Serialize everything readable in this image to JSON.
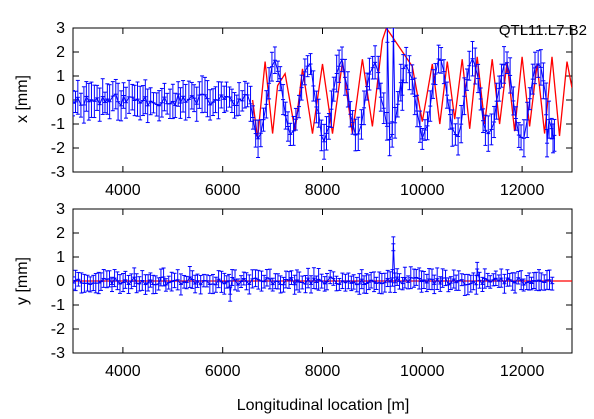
{
  "chart_data": [
    {
      "type": "line",
      "title": "QTL11.L7.B2",
      "xlabel": "",
      "ylabel": "x [mm]",
      "xlim": [
        3000,
        13000
      ],
      "ylim": [
        -3,
        3
      ],
      "xticks": [
        4000,
        6000,
        8000,
        10000,
        12000
      ],
      "xtick_labels": [
        "4000",
        "6000",
        "8000",
        "10000",
        "12000"
      ],
      "yticks": [
        -3,
        -2,
        -1,
        0,
        1,
        2,
        3
      ],
      "ytick_labels": [
        "-3",
        "-2",
        "-1",
        "0",
        "1",
        "2",
        "3"
      ],
      "grid": false,
      "series": [
        {
          "color": "#ff0000",
          "style": "line",
          "x": [
            6600,
            6700,
            6850,
            7000,
            7100,
            7250,
            7450,
            7600,
            7800,
            8000,
            8200,
            8400,
            8600,
            8800,
            9000,
            9200,
            9280,
            9800,
            10000,
            10200,
            10350,
            10500,
            10650,
            10800,
            10950,
            11100,
            11250,
            11400,
            11550,
            11700,
            11850,
            12000,
            12150,
            12300,
            12450,
            12600,
            12750,
            12900,
            13000
          ],
          "y": [
            0.0,
            -1.6,
            1.6,
            -1.4,
            0.6,
            1.1,
            -1.3,
            1.3,
            -1.4,
            1.5,
            -1.4,
            1.6,
            -1.4,
            1.7,
            -1.1,
            2.5,
            3.0,
            1.4,
            -0.9,
            1.5,
            -1.0,
            1.6,
            -0.8,
            1.7,
            -1.2,
            1.8,
            -1.0,
            1.7,
            -1.0,
            1.6,
            -1.3,
            1.8,
            -1.1,
            1.5,
            -1.4,
            1.8,
            -1.5,
            1.6,
            0.5
          ]
        },
        {
          "color": "#0000ff",
          "style": "errorbar",
          "seed": 11,
          "x_start": 3000,
          "x_end": 12650,
          "flat_region_end": 6550,
          "oscillation_amplitude": 1.55,
          "oscillation_period": 660,
          "noise_sigma": 0.2,
          "error_bar": 0.6,
          "markers": [
            {
              "x": 9300,
              "y": 3.0
            },
            {
              "x": 9420,
              "y": 3.0
            },
            {
              "x": 9600,
              "y": 0.2
            },
            {
              "x": 12500,
              "y": -1.8
            },
            {
              "x": 12620,
              "y": -1.6
            }
          ]
        }
      ]
    },
    {
      "type": "line",
      "title": "",
      "xlabel": "Longitudinal location [m]",
      "ylabel": "y [mm]",
      "xlim": [
        3000,
        13000
      ],
      "ylim": [
        -3,
        3
      ],
      "xticks": [
        4000,
        6000,
        8000,
        10000,
        12000
      ],
      "xtick_labels": [
        "4000",
        "6000",
        "8000",
        "10000",
        "12000"
      ],
      "yticks": [
        -3,
        -2,
        -1,
        0,
        1,
        2,
        3
      ],
      "ytick_labels": [
        "-3",
        "-2",
        "-1",
        "0",
        "1",
        "2",
        "3"
      ],
      "grid": false,
      "series": [
        {
          "color": "#ff0000",
          "style": "line",
          "x": [
            3000,
            13000
          ],
          "y": [
            0.0,
            0.0
          ]
        },
        {
          "color": "#0000ff",
          "style": "errorbar",
          "seed": 23,
          "x_start": 3000,
          "x_end": 12650,
          "noise_sigma": 0.13,
          "error_bar": 0.35,
          "markers": [
            {
              "x": 6150,
              "y": -0.55
            },
            {
              "x": 9420,
              "y": 1.55
            },
            {
              "x": 11100,
              "y": 0.5
            }
          ]
        }
      ]
    }
  ]
}
